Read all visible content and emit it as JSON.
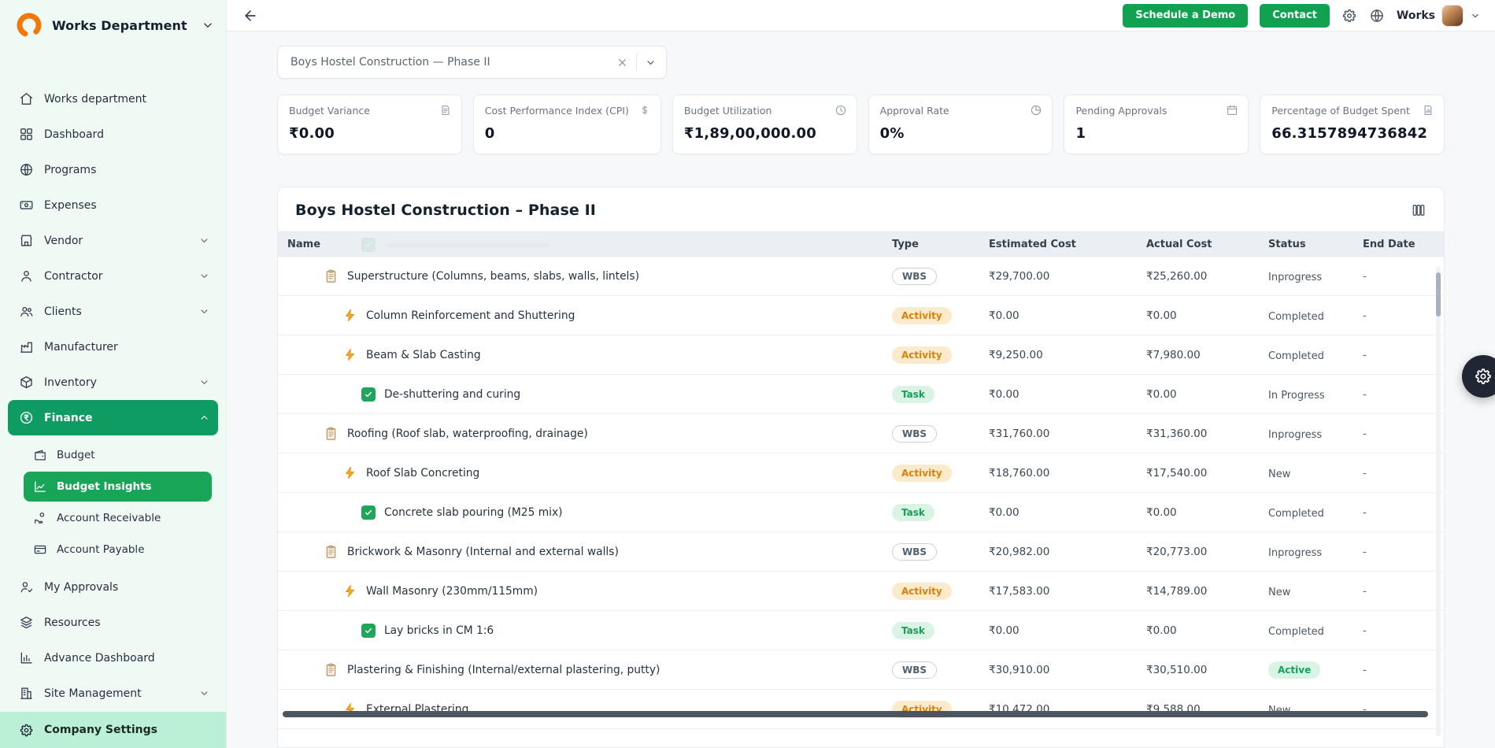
{
  "colors": {
    "accent": "#12A150",
    "finance_active": "#0E9C62",
    "subnav_active": "#18A558",
    "sidebar_bg": "#EFFAF4",
    "footer_bg": "#BCF0D6",
    "status_green": "#17A05E",
    "activity_amber": "#D9820B"
  },
  "topbar": {
    "schedule_demo": "Schedule a Demo",
    "contact": "Contact",
    "user": "Works"
  },
  "project_select": {
    "value": "Boys Hostel Construction — Phase II"
  },
  "kpis": [
    {
      "label": "Budget Variance",
      "value": "₹0.00",
      "icon": "note-icon"
    },
    {
      "label": "Cost Performance Index (CPI)",
      "value": "0",
      "icon": "money-icon"
    },
    {
      "label": "Budget Utilization",
      "value": "₹1,89,00,000.00",
      "icon": "history-icon"
    },
    {
      "label": "Approval Rate",
      "value": "0%",
      "icon": "pie-icon"
    },
    {
      "label": "Pending Approvals",
      "value": "1",
      "icon": "calendar-icon"
    },
    {
      "label": "Percentage of Budget Spent",
      "value": "66.3157894736842",
      "icon": "file-chart-icon"
    }
  ],
  "sidebar": {
    "brand": "Works Department",
    "items": [
      {
        "label": "Works department",
        "icon": "home-icon"
      },
      {
        "label": "Dashboard",
        "icon": "dashboard-icon"
      },
      {
        "label": "Programs",
        "icon": "globe-icon"
      },
      {
        "label": "Expenses",
        "icon": "expenses-icon"
      },
      {
        "label": "Vendor",
        "icon": "vendor-icon",
        "chevron": "down"
      },
      {
        "label": "Contractor",
        "icon": "contractor-icon",
        "chevron": "down"
      },
      {
        "label": "Clients",
        "icon": "clients-icon",
        "chevron": "down"
      },
      {
        "label": "Manufacturer",
        "icon": "manufacturer-icon"
      },
      {
        "label": "Inventory",
        "icon": "inventory-icon",
        "chevron": "down"
      },
      {
        "label": "Finance",
        "icon": "finance-icon",
        "chevron": "up",
        "active": true,
        "children": [
          {
            "label": "Budget",
            "icon": "budget-icon"
          },
          {
            "label": "Budget Insights",
            "icon": "insights-icon",
            "active": true
          },
          {
            "label": "Account Receivable",
            "icon": "receivable-icon"
          },
          {
            "label": "Account Payable",
            "icon": "payable-icon"
          }
        ]
      },
      {
        "label": "My Approvals",
        "icon": "approvals-icon"
      },
      {
        "label": "Resources",
        "icon": "resources-icon"
      },
      {
        "label": "Advance Dashboard",
        "icon": "adv-dashboard-icon"
      },
      {
        "label": "Site Management",
        "icon": "site-icon",
        "chevron": "down"
      }
    ],
    "footer": {
      "label": "Company Settings",
      "icon": "gear-icon"
    }
  },
  "table": {
    "title": "Boys Hostel Construction – Phase II",
    "columns": [
      "Name",
      "Type",
      "Estimated Cost",
      "Actual Cost",
      "Status",
      "End Date"
    ],
    "rows": [
      {
        "level": 1,
        "icon": "wbs",
        "name": "Superstructure (Columns, beams, slabs, walls, lintels)",
        "type": "WBS",
        "estimated": "₹29,700.00",
        "actual": "₹25,260.00",
        "status": "Inprogress",
        "status_pill": false,
        "end": "-"
      },
      {
        "level": 2,
        "icon": "activity",
        "name": "Column Reinforcement and Shuttering",
        "type": "Activity",
        "estimated": "₹0.00",
        "actual": "₹0.00",
        "status": "Completed",
        "status_pill": false,
        "end": "-"
      },
      {
        "level": 2,
        "icon": "activity",
        "name": "Beam & Slab Casting",
        "type": "Activity",
        "estimated": "₹9,250.00",
        "actual": "₹7,980.00",
        "status": "Completed",
        "status_pill": false,
        "end": "-"
      },
      {
        "level": 3,
        "icon": "task",
        "name": "De-shuttering and curing",
        "type": "Task",
        "estimated": "₹0.00",
        "actual": "₹0.00",
        "status": "In Progress",
        "status_pill": false,
        "end": "-"
      },
      {
        "level": 1,
        "icon": "wbs",
        "name": "Roofing (Roof slab, waterproofing, drainage)",
        "type": "WBS",
        "estimated": "₹31,760.00",
        "actual": "₹31,360.00",
        "status": "Inprogress",
        "status_pill": false,
        "end": "-"
      },
      {
        "level": 2,
        "icon": "activity",
        "name": "Roof Slab Concreting",
        "type": "Activity",
        "estimated": "₹18,760.00",
        "actual": "₹17,540.00",
        "status": "New",
        "status_pill": false,
        "end": "-"
      },
      {
        "level": 3,
        "icon": "task",
        "name": "Concrete slab pouring (M25 mix)",
        "type": "Task",
        "estimated": "₹0.00",
        "actual": "₹0.00",
        "status": "Completed",
        "status_pill": false,
        "end": "-"
      },
      {
        "level": 1,
        "icon": "wbs",
        "name": "Brickwork & Masonry (Internal and external walls)",
        "type": "WBS",
        "estimated": "₹20,982.00",
        "actual": "₹20,773.00",
        "status": "Inprogress",
        "status_pill": false,
        "end": "-"
      },
      {
        "level": 2,
        "icon": "activity",
        "name": "Wall Masonry (230mm/115mm)",
        "type": "Activity",
        "estimated": "₹17,583.00",
        "actual": "₹14,789.00",
        "status": "New",
        "status_pill": false,
        "end": "-"
      },
      {
        "level": 3,
        "icon": "task",
        "name": "Lay bricks in CM 1:6",
        "type": "Task",
        "estimated": "₹0.00",
        "actual": "₹0.00",
        "status": "Completed",
        "status_pill": false,
        "end": "-"
      },
      {
        "level": 1,
        "icon": "wbs",
        "name": "Plastering & Finishing (Internal/external plastering, putty)",
        "type": "WBS",
        "estimated": "₹30,910.00",
        "actual": "₹30,510.00",
        "status": "Active",
        "status_pill": true,
        "end": "-"
      },
      {
        "level": 2,
        "icon": "activity",
        "name": "External Plastering",
        "type": "Activity",
        "estimated": "₹10,472.00",
        "actual": "₹9,588.00",
        "status": "New",
        "status_pill": false,
        "end": "-"
      }
    ]
  }
}
